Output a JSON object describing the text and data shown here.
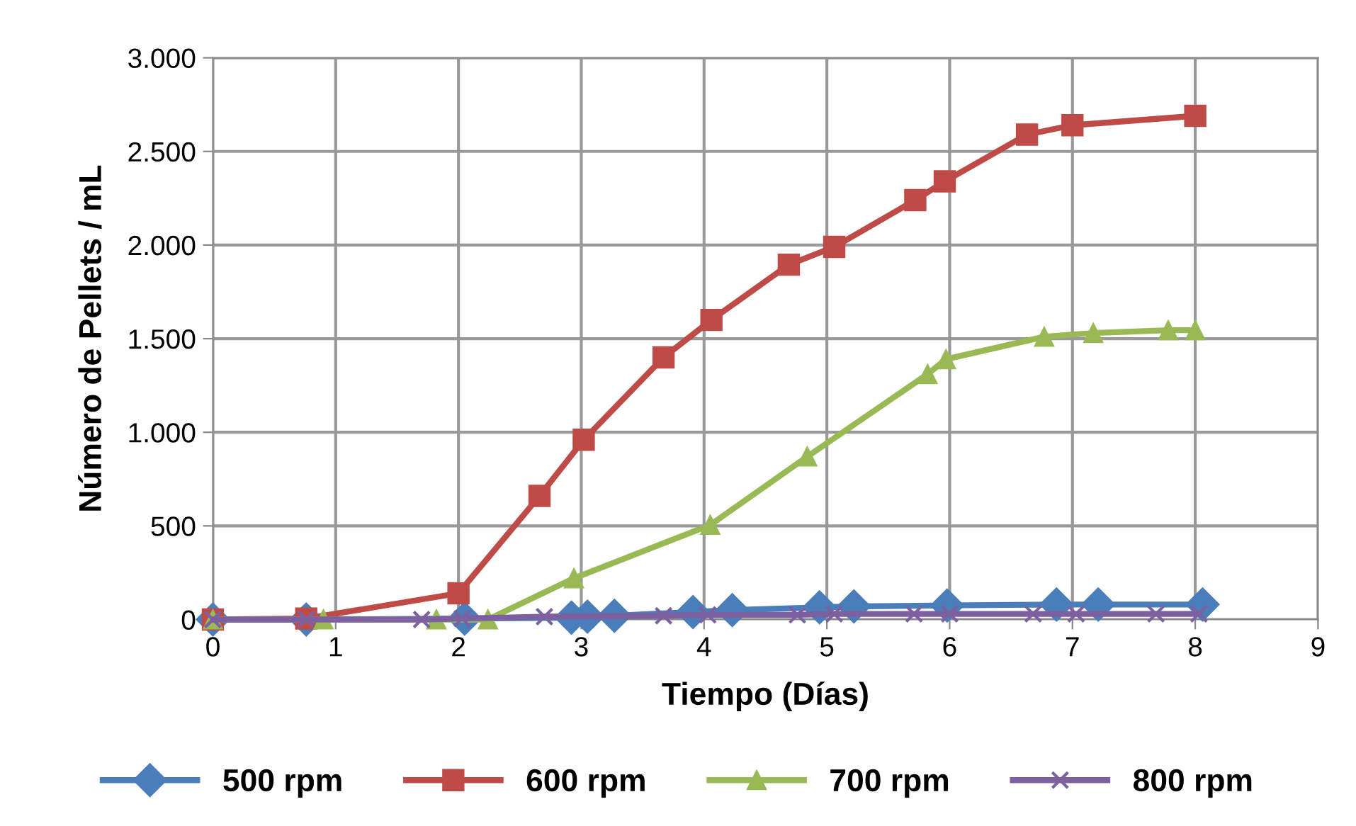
{
  "chart_data": {
    "type": "line",
    "xlabel": "Tiempo (Días)",
    "ylabel": "Número de Pellets / mL",
    "xlim": [
      0,
      9
    ],
    "xticks": [
      0,
      1,
      2,
      3,
      4,
      5,
      6,
      7,
      8,
      9
    ],
    "ylim": [
      0,
      3000
    ],
    "yticks": [
      {
        "value": 0,
        "label": "0"
      },
      {
        "value": 500,
        "label": "500"
      },
      {
        "value": 1000,
        "label": "1.000"
      },
      {
        "value": 1500,
        "label": "1.500"
      },
      {
        "value": 2000,
        "label": "2.000"
      },
      {
        "value": 2500,
        "label": "2.500"
      },
      {
        "value": 3000,
        "label": "3.000"
      }
    ],
    "grid": true,
    "legend": "bottom",
    "series": [
      {
        "name": "500 rpm",
        "color": "#4a7ebb",
        "marker": "diamond",
        "x": [
          0,
          0.76,
          2.05,
          2.92,
          3.05,
          3.27,
          3.91,
          4.23,
          4.94,
          5.22,
          5.98,
          6.87,
          7.21,
          8.06
        ],
        "values": [
          0,
          0,
          5,
          10,
          15,
          20,
          40,
          50,
          65,
          70,
          75,
          80,
          80,
          80
        ]
      },
      {
        "name": "600 rpm",
        "color": "#be4b48",
        "marker": "square",
        "x": [
          0,
          0.76,
          2.0,
          2.66,
          3.02,
          3.67,
          4.06,
          4.69,
          5.06,
          5.72,
          5.96,
          6.63,
          7.0,
          8.0
        ],
        "values": [
          0,
          5,
          140,
          660,
          960,
          1400,
          1600,
          1895,
          1990,
          2240,
          2340,
          2590,
          2640,
          2690
        ]
      },
      {
        "name": "700 rpm",
        "color": "#98b954",
        "marker": "triangle",
        "x": [
          0,
          0.9,
          1.82,
          2.24,
          2.94,
          4.05,
          4.84,
          5.82,
          5.97,
          6.77,
          7.17,
          7.78,
          8.0
        ],
        "values": [
          0,
          0,
          0,
          0,
          220,
          505,
          870,
          1310,
          1390,
          1510,
          1530,
          1545,
          1545
        ]
      },
      {
        "name": "800 rpm",
        "color": "#7d60a0",
        "marker": "cross",
        "x": [
          0,
          0.76,
          1.7,
          2.03,
          2.7,
          3.67,
          4.03,
          4.76,
          5.06,
          5.71,
          6.0,
          6.68,
          7.03,
          7.68,
          8.03
        ],
        "values": [
          0,
          0,
          0,
          5,
          15,
          20,
          25,
          25,
          30,
          30,
          30,
          30,
          30,
          30,
          30
        ]
      }
    ]
  }
}
